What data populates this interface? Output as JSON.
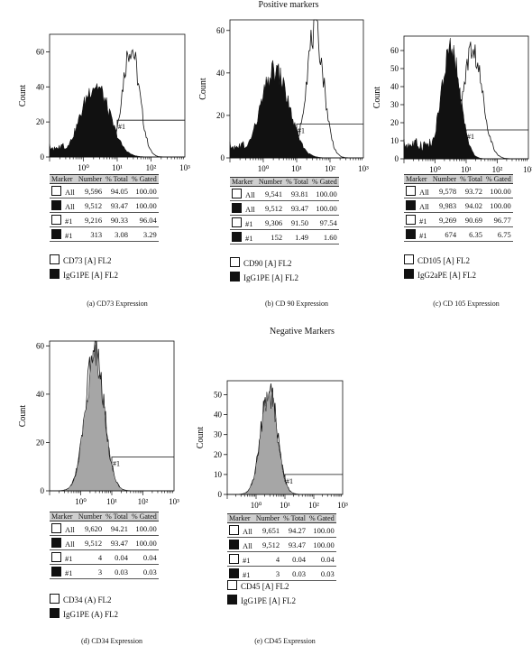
{
  "sections": {
    "positive": "Positive markers",
    "negative": "Negative Markers"
  },
  "table_headers": [
    "Marker",
    "Number",
    "% Total",
    "% Gated"
  ],
  "colors": {
    "isotype": "#111111",
    "negative_fill": "#a6a6a6",
    "outline": "#111111"
  },
  "chart_data": [
    {
      "id": "a",
      "type": "area",
      "caption": "(a) CD73 Expression",
      "ylabel": "Count",
      "ylim": [
        0,
        70
      ],
      "yticks": [
        0,
        20,
        40,
        60
      ],
      "xscale": "log",
      "xlim": [
        0.1,
        1000
      ],
      "xticks": [
        "10⁰",
        "10¹",
        "10²",
        "10³"
      ],
      "gate": {
        "label": "#1",
        "from": 10,
        "to": 1000,
        "level": 21
      },
      "series": [
        {
          "name": "CD73 [A] FL2",
          "style": "outline",
          "peak_log": 1.4,
          "width": 0.25,
          "max": 63
        },
        {
          "name": "IgG1PE [A] FL2",
          "style": "filled",
          "peak_log": 0.35,
          "width": 0.42,
          "max": 41
        }
      ],
      "table": [
        {
          "swatch": "open",
          "marker": "All",
          "number": "9,596",
          "total": "94.05",
          "gated": "100.00"
        },
        {
          "swatch": "filled",
          "marker": "All",
          "number": "9,512",
          "total": "93.47",
          "gated": "100.00"
        },
        {
          "swatch": "open",
          "marker": "#1",
          "number": "9,216",
          "total": "90.33",
          "gated": "96.04"
        },
        {
          "swatch": "filled",
          "marker": "#1",
          "number": "313",
          "total": "3.08",
          "gated": "3.29"
        }
      ],
      "legend": [
        {
          "swatch": "open",
          "label": "CD73 [A] FL2"
        },
        {
          "swatch": "filled",
          "label": "IgG1PE [A] FL2"
        }
      ]
    },
    {
      "id": "b",
      "type": "area",
      "caption": "(b) CD 90 Expression",
      "ylabel": "Count",
      "ylim": [
        0,
        65
      ],
      "yticks": [
        0,
        20,
        40,
        60
      ],
      "xscale": "log",
      "xlim": [
        0.1,
        1000
      ],
      "xticks": [
        "10⁰",
        "10¹",
        "10²",
        "10³"
      ],
      "gate": {
        "label": "#1",
        "from": 10,
        "to": 1000,
        "level": 16
      },
      "series": [
        {
          "name": "CD90 [A] FL2",
          "style": "outline",
          "peak_log": 1.55,
          "width": 0.26,
          "max": 60
        },
        {
          "name": "IgG1PE [A] FL2",
          "style": "filled",
          "peak_log": 0.35,
          "width": 0.42,
          "max": 41
        }
      ],
      "table": [
        {
          "swatch": "open",
          "marker": "All",
          "number": "9,541",
          "total": "93.81",
          "gated": "100.00"
        },
        {
          "swatch": "filled",
          "marker": "All",
          "number": "9,512",
          "total": "93.47",
          "gated": "100.00"
        },
        {
          "swatch": "open",
          "marker": "#1",
          "number": "9,306",
          "total": "91.50",
          "gated": "97.54"
        },
        {
          "swatch": "filled",
          "marker": "#1",
          "number": "152",
          "total": "1.49",
          "gated": "1.60"
        }
      ],
      "legend": [
        {
          "swatch": "open",
          "label": "CD90 [A] FL2"
        },
        {
          "swatch": "filled",
          "label": "IgG1PE [A] FL2"
        }
      ]
    },
    {
      "id": "c",
      "type": "area",
      "caption": "(c) CD 105 Expression",
      "ylabel": "Count",
      "ylim": [
        0,
        68
      ],
      "yticks": [
        0,
        10,
        20,
        30,
        40,
        50,
        60
      ],
      "xscale": "log",
      "xlim": [
        0.1,
        1000
      ],
      "xticks": [
        "10⁰",
        "10¹",
        "10²",
        "10³"
      ],
      "gate": {
        "label": "#1",
        "from": 10,
        "to": 1000,
        "level": 16
      },
      "series": [
        {
          "name": "CD105 [A] FL2",
          "style": "outline",
          "peak_log": 1.2,
          "width": 0.32,
          "max": 60
        },
        {
          "name": "IgG2aPE [A] FL2",
          "style": "filled",
          "peak_log": 0.5,
          "width": 0.3,
          "max": 60
        }
      ],
      "table": [
        {
          "swatch": "open",
          "marker": "All",
          "number": "9,578",
          "total": "93.72",
          "gated": "100.00"
        },
        {
          "swatch": "filled",
          "marker": "All",
          "number": "9,983",
          "total": "94.02",
          "gated": "100.00"
        },
        {
          "swatch": "open",
          "marker": "#1",
          "number": "9,269",
          "total": "90.69",
          "gated": "96.77"
        },
        {
          "swatch": "filled",
          "marker": "#1",
          "number": "674",
          "total": "6.35",
          "gated": "6.75"
        }
      ],
      "legend": [
        {
          "swatch": "open",
          "label": "CD105 [A] FL2"
        },
        {
          "swatch": "filled",
          "label": "IgG2aPE [A] FL2"
        }
      ]
    },
    {
      "id": "d",
      "type": "area",
      "caption": "(d) CD34 Expression",
      "ylabel": "Count",
      "ylim": [
        0,
        62
      ],
      "yticks": [
        0,
        20,
        40,
        60
      ],
      "xscale": "log",
      "xlim": [
        0.1,
        1000
      ],
      "xticks": [
        "10⁰",
        "10¹",
        "10²",
        "10³"
      ],
      "gate": {
        "label": "#1",
        "from": 10,
        "to": 1000,
        "level": 14
      },
      "series": [
        {
          "name": "CD34 (A) FL2",
          "style": "outline",
          "peak_log": 0.45,
          "width": 0.3,
          "max": 58
        },
        {
          "name": "IgG1PE (A) FL2",
          "style": "gray",
          "peak_log": 0.45,
          "width": 0.3,
          "max": 56
        }
      ],
      "table": [
        {
          "swatch": "open",
          "marker": "All",
          "number": "9,620",
          "total": "94.21",
          "gated": "100.00"
        },
        {
          "swatch": "filled",
          "marker": "All",
          "number": "9,512",
          "total": "93.47",
          "gated": "100.00"
        },
        {
          "swatch": "open",
          "marker": "#1",
          "number": "4",
          "total": "0.04",
          "gated": "0.04"
        },
        {
          "swatch": "filled",
          "marker": "#1",
          "number": "3",
          "total": "0.03",
          "gated": "0.03"
        }
      ],
      "legend": [
        {
          "swatch": "open",
          "label": "CD34 (A) FL2"
        },
        {
          "swatch": "filled",
          "label": "IgG1PE (A) FL2"
        }
      ]
    },
    {
      "id": "e",
      "type": "area",
      "caption": "(e) CD45 Expression",
      "ylabel": "Count",
      "ylim": [
        0,
        57
      ],
      "yticks": [
        0,
        10,
        20,
        30,
        40,
        50
      ],
      "xscale": "log",
      "xlim": [
        0.1,
        1000
      ],
      "xticks": [
        "10⁰",
        "10¹",
        "10²",
        "10³"
      ],
      "gate": {
        "label": "#1",
        "from": 10,
        "to": 1000,
        "level": 10
      },
      "series": [
        {
          "name": "CD45 [A] FL2",
          "style": "outline",
          "peak_log": 0.45,
          "width": 0.28,
          "max": 53
        },
        {
          "name": "IgG1PE [A] FL2",
          "style": "gray",
          "peak_log": 0.45,
          "width": 0.28,
          "max": 51
        }
      ],
      "table": [
        {
          "swatch": "open",
          "marker": "All",
          "number": "9,651",
          "total": "94.27",
          "gated": "100.00"
        },
        {
          "swatch": "filled",
          "marker": "All",
          "number": "9,512",
          "total": "93.47",
          "gated": "100.00"
        },
        {
          "swatch": "open",
          "marker": "#1",
          "number": "4",
          "total": "0.04",
          "gated": "0.04"
        },
        {
          "swatch": "filled",
          "marker": "#1",
          "number": "3",
          "total": "0.03",
          "gated": "0.03"
        }
      ],
      "legend": [
        {
          "swatch": "open",
          "label": "CD45 [A] FL2"
        },
        {
          "swatch": "filled",
          "label": "IgG1PE [A] FL2"
        }
      ]
    }
  ]
}
